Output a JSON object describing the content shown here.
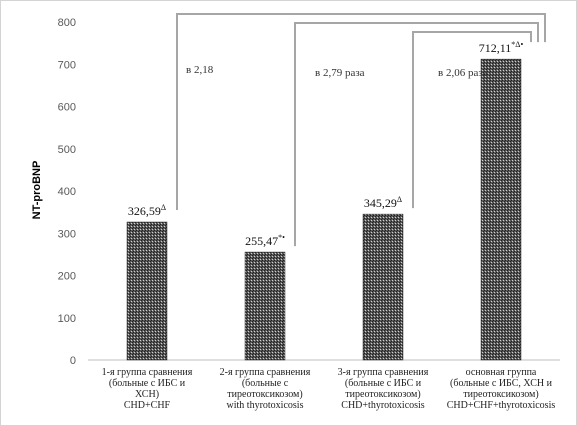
{
  "chart_data": {
    "type": "bar",
    "title": "",
    "xlabel": "",
    "ylabel": "NT-proBNP",
    "ylim": [
      0,
      800
    ],
    "yticks": [
      0,
      100,
      200,
      300,
      400,
      500,
      600,
      700,
      800
    ],
    "grid": false,
    "legend": "none",
    "categories": [
      [
        "1-я группа сравнения",
        "(больные с ИБС и",
        "ХСН)",
        "CHD+CHF"
      ],
      [
        "2-я группа сравнения",
        "(больные с",
        "тиреотоксикозом)",
        "with thyrotoxicosis"
      ],
      [
        "3-я группа сравнения",
        "(больные с ИБС и",
        "тиреотоксикозом)",
        "CHD+thyrotoxicosis"
      ],
      [
        "основная группа",
        "(больные с ИБС, ХСН и",
        "тиреотоксикозом)",
        "CHD+CHF+thyrotoxicosis"
      ]
    ],
    "values": [
      326.59,
      255.47,
      345.29,
      712.11
    ],
    "data_labels": [
      "326,59",
      "255,47",
      "345,29",
      "712,11"
    ],
    "data_label_marks": [
      "Δ",
      "*•",
      "Δ",
      "*Δ•"
    ],
    "comparisons": [
      {
        "from": 0,
        "to": 3,
        "label": "в 2,18"
      },
      {
        "from": 1,
        "to": 3,
        "label": "в 2,79 раза"
      },
      {
        "from": 2,
        "to": 3,
        "label": "в 2,06 раза"
      }
    ],
    "bar_color": "#3a3a3a",
    "line_color": "#a6a6a6"
  }
}
